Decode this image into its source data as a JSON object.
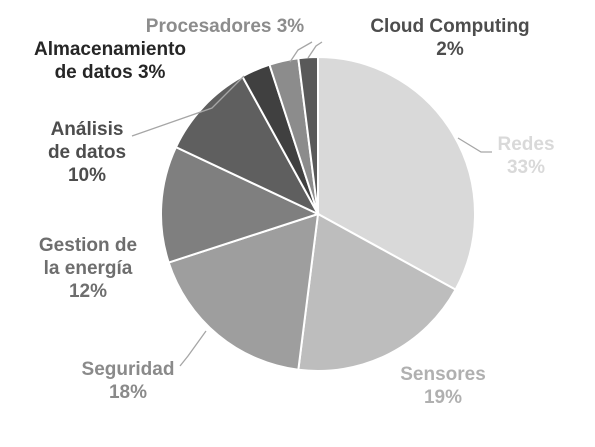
{
  "chart_data": {
    "type": "pie",
    "title": "",
    "legend": "none",
    "slices": [
      {
        "name": "Redes",
        "value": 33,
        "label": "33%",
        "color": "#d9d9d9",
        "label_color": "#d9d9d9"
      },
      {
        "name": "Sensores",
        "value": 19,
        "label": "19%",
        "color": "#bdbdbd",
        "label_color": "#b0b0b0"
      },
      {
        "name": "Seguridad",
        "value": 18,
        "label": "18%",
        "color": "#9e9e9e",
        "label_color": "#8a8a8a"
      },
      {
        "name": "Gestion de la energía",
        "label_lines": [
          "Gestion de",
          "la energía"
        ],
        "value": 12,
        "label": "12%",
        "color": "#7f7f7f",
        "label_color": "#6e6e6e"
      },
      {
        "name": "Análisis de datos",
        "label_lines": [
          "Análisis",
          "de datos"
        ],
        "value": 10,
        "label": "10%",
        "color": "#5f5f5f",
        "label_color": "#4d4d4d"
      },
      {
        "name": "Almacenamiento de datos",
        "label_lines": [
          "Almacenamiento",
          "de datos 3%"
        ],
        "value": 3,
        "label": "3%",
        "color": "#404040",
        "label_color": "#262626"
      },
      {
        "name": "Procesadores",
        "label_lines": [
          "Procesadores 3%"
        ],
        "value": 3,
        "label": "3%",
        "color": "#8c8c8c",
        "label_color": "#8c8c8c"
      },
      {
        "name": "Cloud Computing",
        "label_lines": [
          "Cloud Computing",
          "2%"
        ],
        "value": 2,
        "label": "2%",
        "color": "#595959",
        "label_color": "#4d4d4d"
      }
    ]
  }
}
